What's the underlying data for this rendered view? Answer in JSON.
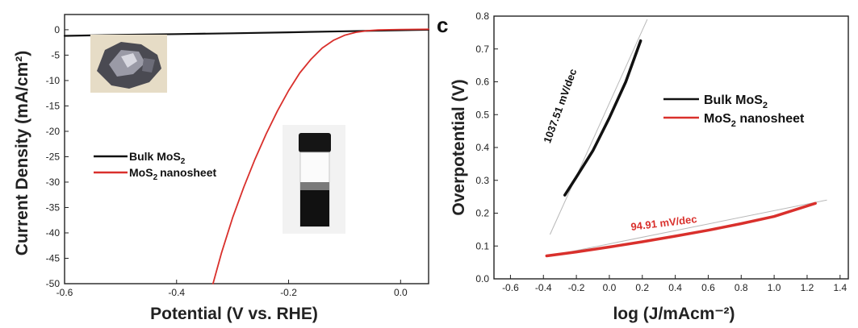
{
  "colors": {
    "bulk": "#111111",
    "nano": "#d9302c",
    "fit": "#b8b8b8"
  },
  "chart_data": [
    {
      "type": "line",
      "title": "",
      "xlabel": "Potential (V vs. RHE)",
      "ylabel": "Current Density (mA/cm²)",
      "xlim": [
        -0.6,
        0.05
      ],
      "ylim": [
        -50,
        3
      ],
      "xticks": [
        {
          "v": -0.6,
          "label": "-0.6"
        },
        {
          "v": -0.4,
          "label": "-0.4"
        },
        {
          "v": -0.2,
          "label": "-0.2"
        },
        {
          "v": 0.0,
          "label": "0.0"
        }
      ],
      "yticks": [
        {
          "v": 0,
          "label": "0"
        },
        {
          "v": -5,
          "label": "-5"
        },
        {
          "v": -10,
          "label": "-10"
        },
        {
          "v": -15,
          "label": "-15"
        },
        {
          "v": -20,
          "label": "-20"
        },
        {
          "v": -25,
          "label": "-25"
        },
        {
          "v": -30,
          "label": "-30"
        },
        {
          "v": -35,
          "label": "-35"
        },
        {
          "v": -40,
          "label": "-40"
        },
        {
          "v": -45,
          "label": "-45"
        },
        {
          "v": -50,
          "label": "-50"
        }
      ],
      "legend": {
        "placement": "center-left",
        "bulk": "Bulk MoS",
        "nano": "MoS",
        "nano_suffix": "nanosheet",
        "sub": "2"
      },
      "series": [
        {
          "name": "Bulk MoS2",
          "color_key": "bulk",
          "x": [
            -0.6,
            -0.5,
            -0.4,
            -0.3,
            -0.2,
            -0.1,
            0.0,
            0.05
          ],
          "y": [
            -1.2,
            -1.0,
            -0.85,
            -0.7,
            -0.5,
            -0.3,
            -0.1,
            0.0
          ]
        },
        {
          "name": "MoS2 nanosheet",
          "color_key": "nano",
          "x": [
            -0.335,
            -0.32,
            -0.3,
            -0.28,
            -0.26,
            -0.24,
            -0.22,
            -0.2,
            -0.18,
            -0.16,
            -0.14,
            -0.12,
            -0.1,
            -0.08,
            -0.06,
            -0.04,
            -0.02,
            0.0,
            0.05
          ],
          "y": [
            -50,
            -44,
            -37,
            -31,
            -25.5,
            -20.5,
            -16,
            -12,
            -8.5,
            -5.8,
            -3.6,
            -2.1,
            -1.1,
            -0.5,
            -0.2,
            -0.05,
            0.0,
            0.05,
            0.1
          ]
        }
      ],
      "images": [
        {
          "name": "bulk-crystal-photo",
          "caption": ""
        },
        {
          "name": "nanosheet-vial-photo",
          "caption": ""
        }
      ]
    },
    {
      "type": "line",
      "title": "",
      "xlabel": "log (J/mAcm⁻²)",
      "ylabel": "Overpotential (V)",
      "xlim": [
        -0.7,
        1.45
      ],
      "ylim": [
        0.0,
        0.8
      ],
      "xticks": [
        {
          "v": -0.6,
          "label": "-0.6"
        },
        {
          "v": -0.4,
          "label": "-0.4"
        },
        {
          "v": -0.2,
          "label": "-0.2"
        },
        {
          "v": 0.0,
          "label": "0.0"
        },
        {
          "v": 0.2,
          "label": "0.2"
        },
        {
          "v": 0.4,
          "label": "0.4"
        },
        {
          "v": 0.6,
          "label": "0.6"
        },
        {
          "v": 0.8,
          "label": "0.8"
        },
        {
          "v": 1.0,
          "label": "1.0"
        },
        {
          "v": 1.2,
          "label": "1.2"
        },
        {
          "v": 1.4,
          "label": "1.4"
        }
      ],
      "yticks": [
        {
          "v": 0.0,
          "label": "0.0"
        },
        {
          "v": 0.1,
          "label": "0.1"
        },
        {
          "v": 0.2,
          "label": "0.2"
        },
        {
          "v": 0.3,
          "label": "0.3"
        },
        {
          "v": 0.4,
          "label": "0.4"
        },
        {
          "v": 0.5,
          "label": "0.5"
        },
        {
          "v": 0.6,
          "label": "0.6"
        },
        {
          "v": 0.7,
          "label": "0.7"
        },
        {
          "v": 0.8,
          "label": "0.8"
        }
      ],
      "legend": {
        "placement": "center-right",
        "bulk": "Bulk MoS",
        "nano": "MoS",
        "nano_suffix": " nanosheet",
        "sub": "2"
      },
      "series": [
        {
          "name": "Bulk MoS2",
          "color_key": "bulk",
          "x": [
            -0.27,
            -0.2,
            -0.1,
            0.0,
            0.1,
            0.19
          ],
          "y": [
            0.255,
            0.31,
            0.39,
            0.49,
            0.6,
            0.725
          ]
        },
        {
          "name": "MoS2 nanosheet",
          "color_key": "nano",
          "x": [
            -0.38,
            -0.2,
            0.0,
            0.2,
            0.4,
            0.6,
            0.8,
            1.0,
            1.25
          ],
          "y": [
            0.07,
            0.082,
            0.097,
            0.113,
            0.13,
            0.148,
            0.168,
            0.19,
            0.23
          ]
        }
      ],
      "fit_lines": [
        {
          "name": "bulk-tafel-fit",
          "x": [
            -0.36,
            0.23
          ],
          "y": [
            0.135,
            0.79
          ]
        },
        {
          "name": "nano-tafel-fit",
          "x": [
            -0.38,
            1.32
          ],
          "y": [
            0.068,
            0.24
          ]
        }
      ],
      "annotations": [
        {
          "name": "bulk-tafel-slope",
          "text": "1037.51 mV/dec",
          "color_key": "bulk"
        },
        {
          "name": "nano-tafel-slope",
          "text": "94.91 mV/dec",
          "color_key": "nano"
        }
      ]
    }
  ]
}
